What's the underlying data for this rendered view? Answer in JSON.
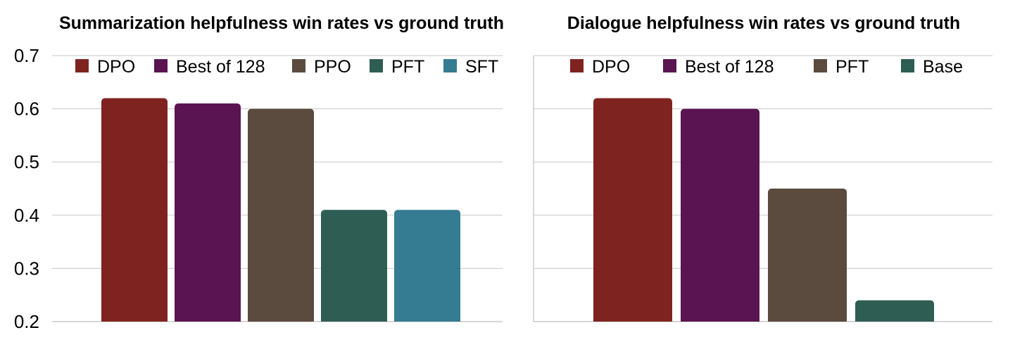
{
  "chart_data": [
    {
      "type": "bar",
      "title": "Summarization helpfulness win rates vs ground truth",
      "categories": [
        "DPO",
        "Best of 128",
        "PPO",
        "PFT",
        "SFT"
      ],
      "values": [
        0.62,
        0.61,
        0.6,
        0.41,
        0.41
      ],
      "colors": [
        "#7f2320",
        "#5a1452",
        "#5b4a3e",
        "#2e5e53",
        "#357b91"
      ],
      "ylim": [
        0.2,
        0.7
      ],
      "yticks": [
        "0.2",
        "0.3",
        "0.4",
        "0.5",
        "0.6",
        "0.7"
      ],
      "legend_position": "top",
      "grid": true
    },
    {
      "type": "bar",
      "title": "Dialogue helpfulness win rates vs ground truth",
      "categories": [
        "DPO",
        "Best of 128",
        "PFT",
        "Base"
      ],
      "values": [
        0.62,
        0.6,
        0.45,
        0.24
      ],
      "colors": [
        "#7f2320",
        "#5a1452",
        "#5b4a3e",
        "#2e5e53"
      ],
      "ylim": [
        0.2,
        0.7
      ],
      "legend_position": "top",
      "grid": true
    }
  ]
}
